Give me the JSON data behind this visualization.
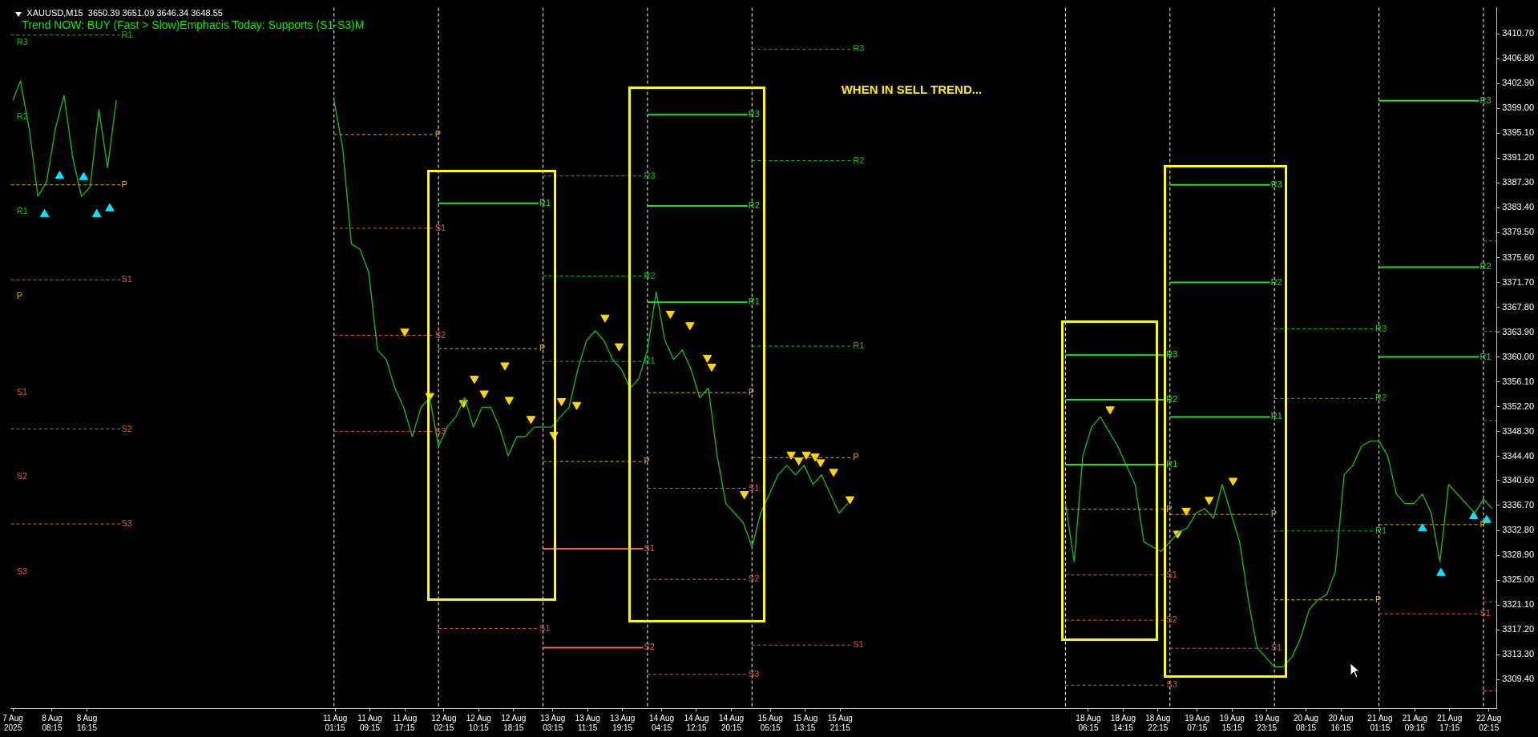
{
  "chart_data": {
    "type": "line",
    "title": "XAUUSD,M15  3650.39 3651.09 3646.34 3648.55",
    "subtitle": "Trend NOW: BUY (Fast > Slow)Emphacis Today: Supports (S1-S3)M",
    "annotations": [
      "WHEN IN SELL TREND...",
      "R3",
      "R2",
      "R1",
      "P",
      "S1",
      "S2",
      "S3"
    ],
    "xlim": [
      "2025-08-07T22:45",
      "2025-08-22T04:00"
    ],
    "xticks": [
      {
        "value": "2025-08-07T23:15",
        "label": "7 Aug 2025"
      },
      {
        "value": "2025-08-08T08:15",
        "label": "8 Aug 08:15"
      },
      {
        "value": "2025-08-08T16:15",
        "label": "8 Aug 16:15"
      },
      {
        "value": "2025-08-11T01:15",
        "label": "11 Aug 01:15"
      },
      {
        "value": "2025-08-11T09:15",
        "label": "11 Aug 09:15"
      },
      {
        "value": "2025-08-11T17:15",
        "label": "11 Aug 17:15"
      },
      {
        "value": "2025-08-12T02:15",
        "label": "12 Aug 02:15"
      },
      {
        "value": "2025-08-12T10:15",
        "label": "12 Aug 10:15"
      },
      {
        "value": "2025-08-12T18:15",
        "label": "12 Aug 18:15"
      },
      {
        "value": "2025-08-13T03:15",
        "label": "13 Aug 03:15"
      },
      {
        "value": "2025-08-13T11:15",
        "label": "13 Aug 11:15"
      },
      {
        "value": "2025-08-13T19:15",
        "label": "13 Aug 19:15"
      },
      {
        "value": "2025-08-14T04:15",
        "label": "14 Aug 04:15"
      },
      {
        "value": "2025-08-14T12:15",
        "label": "14 Aug 12:15"
      },
      {
        "value": "2025-08-14T20:15",
        "label": "14 Aug 20:15"
      },
      {
        "value": "2025-08-15T05:15",
        "label": "15 Aug 05:15"
      },
      {
        "value": "2025-08-15T13:15",
        "label": "15 Aug 13:15"
      },
      {
        "value": "2025-08-15T21:15",
        "label": "15 Aug 21:15"
      },
      {
        "value": "2025-08-18T06:15",
        "label": "18 Aug 06:15"
      },
      {
        "value": "2025-08-18T14:15",
        "label": "18 Aug 14:15"
      },
      {
        "value": "2025-08-18T22:15",
        "label": "18 Aug 22:15"
      },
      {
        "value": "2025-08-19T07:15",
        "label": "19 Aug 07:15"
      },
      {
        "value": "2025-08-19T15:15",
        "label": "19 Aug 15:15"
      },
      {
        "value": "2025-08-19T23:15",
        "label": "19 Aug 23:15"
      },
      {
        "value": "2025-08-20T08:15",
        "label": "20 Aug 08:15"
      },
      {
        "value": "2025-08-20T16:15",
        "label": "20 Aug 16:15"
      },
      {
        "value": "2025-08-21T01:15",
        "label": "21 Aug 01:15"
      },
      {
        "value": "2025-08-21T09:15",
        "label": "21 Aug 09:15"
      },
      {
        "value": "2025-08-21T17:15",
        "label": "21 Aug 17:15"
      },
      {
        "value": "2025-08-22T02:15",
        "label": "22 Aug 02:15"
      }
    ],
    "ylim": [
      3304.9,
      3414.8
    ],
    "yticks": [
      {
        "value": 3410.7,
        "label": "3410.70"
      },
      {
        "value": 3406.8,
        "label": "3406.80"
      },
      {
        "value": 3402.9,
        "label": "3402.90"
      },
      {
        "value": 3399,
        "label": "3399.00"
      },
      {
        "value": 3395.1,
        "label": "3395.10"
      },
      {
        "value": 3391.2,
        "label": "3391.20"
      },
      {
        "value": 3387.3,
        "label": "3387.30"
      },
      {
        "value": 3383.4,
        "label": "3383.40"
      },
      {
        "value": 3379.5,
        "label": "3379.50"
      },
      {
        "value": 3375.6,
        "label": "3375.60"
      },
      {
        "value": 3371.7,
        "label": "3371.70"
      },
      {
        "value": 3367.8,
        "label": "3367.80"
      },
      {
        "value": 3363.9,
        "label": "3363.90"
      },
      {
        "value": 3360,
        "label": "3360.00"
      },
      {
        "value": 3356.1,
        "label": "3356.10"
      },
      {
        "value": 3352.2,
        "label": "3352.20"
      },
      {
        "value": 3348.3,
        "label": "3348.30"
      },
      {
        "value": 3344.4,
        "label": "3344.40"
      },
      {
        "value": 3340.6,
        "label": "3340.60"
      },
      {
        "value": 3336.7,
        "label": "3336.70"
      },
      {
        "value": 3332.8,
        "label": "3332.80"
      },
      {
        "value": 3328.9,
        "label": "3328.90"
      },
      {
        "value": 3325,
        "label": "3325.00"
      },
      {
        "value": 3321.1,
        "label": "3321.10"
      },
      {
        "value": 3317.2,
        "label": "3317.20"
      },
      {
        "value": 3313.3,
        "label": "3313.30"
      },
      {
        "value": 3309.4,
        "label": "3309.40"
      }
    ],
    "grid": false,
    "legend": false,
    "marker": "none",
    "ref_lines": [
      {
        "axis": "x",
        "value": "2025-08-11T01:00",
        "color": "#ffffff",
        "line_style": "dashed"
      },
      {
        "axis": "x",
        "value": "2025-08-12T01:00",
        "color": "#ffffff",
        "line_style": "dashed"
      },
      {
        "axis": "x",
        "value": "2025-08-13T01:00",
        "color": "#ffffff",
        "line_style": "dashed"
      },
      {
        "axis": "x",
        "value": "2025-08-14T01:00",
        "color": "#ffffff",
        "line_style": "dashed"
      },
      {
        "axis": "x",
        "value": "2025-08-15T01:00",
        "color": "#ffffff",
        "line_style": "dashed"
      },
      {
        "axis": "x",
        "value": "2025-08-18T01:00",
        "color": "#ffffff",
        "line_style": "dashed"
      },
      {
        "axis": "x",
        "value": "2025-08-19T01:00",
        "color": "#ffffff",
        "line_style": "dashed"
      },
      {
        "axis": "x",
        "value": "2025-08-20T01:00",
        "color": "#ffffff",
        "line_style": "dashed"
      },
      {
        "axis": "x",
        "value": "2025-08-21T01:00",
        "color": "#ffffff",
        "line_style": "dashed"
      },
      {
        "axis": "x",
        "value": "2025-08-22T01:00",
        "color": "#ffffff",
        "line_style": "dashed"
      }
    ],
    "series": [
      {
        "name": "R1",
        "color": "#00c800",
        "line_style": "dashed",
        "x": [
          "2025-08-07T22:45",
          "2025-08-09T00:00"
        ],
        "values": [
          3410.5,
          3410.5
        ]
      },
      {
        "name": "P",
        "color": "#e0b400",
        "line_style": "dashed",
        "x": [
          "2025-08-07T22:45",
          "2025-08-09T00:00"
        ],
        "values": [
          3387.0,
          3387.0
        ]
      },
      {
        "name": "S1",
        "color": "#e0583c",
        "line_style": "dashed",
        "x": [
          "2025-08-07T22:45",
          "2025-08-09T00:00"
        ],
        "values": [
          3372.1,
          3372.1
        ]
      },
      {
        "name": "S2",
        "color": "#e0583c",
        "line_style": "dashed",
        "x": [
          "2025-08-07T22:45",
          "2025-08-09T00:00"
        ],
        "values": [
          3348.7,
          3348.7
        ]
      },
      {
        "name": "S3",
        "color": "#e0583c",
        "line_style": "dashed",
        "x": [
          "2025-08-07T22:45",
          "2025-08-09T00:00"
        ],
        "values": [
          3333.8,
          3333.8
        ]
      },
      {
        "name": "P",
        "color": "#e0b400",
        "line_style": "dashed",
        "x": [
          "2025-08-11T01:00",
          "2025-08-12T00:00"
        ],
        "values": [
          3394.9,
          3394.9
        ]
      },
      {
        "name": "S1",
        "color": "#e0583c",
        "line_style": "dashed",
        "x": [
          "2025-08-11T01:00",
          "2025-08-12T00:00"
        ],
        "values": [
          3380.2,
          3380.2
        ]
      },
      {
        "name": "S2",
        "color": "#e0583c",
        "line_style": "dashed",
        "x": [
          "2025-08-11T01:00",
          "2025-08-12T00:00"
        ],
        "values": [
          3363.4,
          3363.4
        ]
      },
      {
        "name": "S3",
        "color": "#e0583c",
        "line_style": "dashed",
        "x": [
          "2025-08-11T01:00",
          "2025-08-12T00:00"
        ],
        "values": [
          3348.3,
          3348.3
        ]
      },
      {
        "name": "R1",
        "color": "#22e022",
        "line_style": "solid",
        "x": [
          "2025-08-12T01:00",
          "2025-08-13T00:00"
        ],
        "values": [
          3384.1,
          3384.1
        ]
      },
      {
        "name": "P",
        "color": "#e0b400",
        "line_style": "dashed",
        "x": [
          "2025-08-12T01:00",
          "2025-08-13T00:00"
        ],
        "values": [
          3361.3,
          3361.3
        ]
      },
      {
        "name": "S1",
        "color": "#e0583c",
        "line_style": "dashed",
        "x": [
          "2025-08-12T01:00",
          "2025-08-13T00:00"
        ],
        "values": [
          3317.4,
          3317.4
        ]
      },
      {
        "name": "R3",
        "color": "#00c800",
        "line_style": "dashed",
        "x": [
          "2025-08-13T01:00",
          "2025-08-14T00:00"
        ],
        "values": [
          3388.4,
          3388.4
        ]
      },
      {
        "name": "R2",
        "color": "#00c800",
        "line_style": "dashed",
        "x": [
          "2025-08-13T01:00",
          "2025-08-14T00:00"
        ],
        "values": [
          3372.7,
          3372.7
        ]
      },
      {
        "name": "R1",
        "color": "#00c800",
        "line_style": "dashed",
        "x": [
          "2025-08-13T01:00",
          "2025-08-14T00:00"
        ],
        "values": [
          3359.3,
          3359.3
        ]
      },
      {
        "name": "P",
        "color": "#e0b400",
        "line_style": "dashed",
        "x": [
          "2025-08-13T01:00",
          "2025-08-14T00:00"
        ],
        "values": [
          3343.6,
          3343.6
        ]
      },
      {
        "name": "S1",
        "color": "#f0644a",
        "line_style": "solid",
        "x": [
          "2025-08-13T01:00",
          "2025-08-14T00:00"
        ],
        "values": [
          3329.9,
          3329.9
        ]
      },
      {
        "name": "S2",
        "color": "#f0644a",
        "line_style": "solid",
        "x": [
          "2025-08-13T01:00",
          "2025-08-14T00:00"
        ],
        "values": [
          3314.4,
          3314.4
        ]
      },
      {
        "name": "R3",
        "color": "#22e022",
        "line_style": "solid",
        "x": [
          "2025-08-14T01:00",
          "2025-08-15T00:00"
        ],
        "values": [
          3398.0,
          3398.0
        ]
      },
      {
        "name": "R2",
        "color": "#22e022",
        "line_style": "solid",
        "x": [
          "2025-08-14T01:00",
          "2025-08-15T00:00"
        ],
        "values": [
          3383.7,
          3383.7
        ]
      },
      {
        "name": "R1",
        "color": "#22e022",
        "line_style": "solid",
        "x": [
          "2025-08-14T01:00",
          "2025-08-15T00:00"
        ],
        "values": [
          3368.6,
          3368.6
        ]
      },
      {
        "name": "P",
        "color": "#e0b400",
        "line_style": "dashed",
        "x": [
          "2025-08-14T01:00",
          "2025-08-15T00:00"
        ],
        "values": [
          3354.4,
          3354.4
        ]
      },
      {
        "name": "S1",
        "color": "#e0583c",
        "line_style": "dashed",
        "x": [
          "2025-08-14T01:00",
          "2025-08-15T00:00"
        ],
        "values": [
          3339.4,
          3339.4
        ]
      },
      {
        "name": "S2",
        "color": "#e0583c",
        "line_style": "dashed",
        "x": [
          "2025-08-14T01:00",
          "2025-08-15T00:00"
        ],
        "values": [
          3325.1,
          3325.1
        ]
      },
      {
        "name": "S3",
        "color": "#e0583c",
        "line_style": "dashed",
        "x": [
          "2025-08-14T01:00",
          "2025-08-15T00:00"
        ],
        "values": [
          3310.2,
          3310.2
        ]
      },
      {
        "name": "R3",
        "color": "#00c800",
        "line_style": "dashed",
        "x": [
          "2025-08-15T01:00",
          "2025-08-16T00:00"
        ],
        "values": [
          3408.3,
          3408.3
        ]
      },
      {
        "name": "R2",
        "color": "#00c800",
        "line_style": "dashed",
        "x": [
          "2025-08-15T01:00",
          "2025-08-16T00:00"
        ],
        "values": [
          3390.8,
          3390.8
        ]
      },
      {
        "name": "R1",
        "color": "#00c800",
        "line_style": "dashed",
        "x": [
          "2025-08-15T01:00",
          "2025-08-16T00:00"
        ],
        "values": [
          3361.7,
          3361.7
        ]
      },
      {
        "name": "P",
        "color": "#e0b400",
        "line_style": "dashed",
        "x": [
          "2025-08-15T01:00",
          "2025-08-16T00:00"
        ],
        "values": [
          3344.2,
          3344.2
        ]
      },
      {
        "name": "S1",
        "color": "#e0583c",
        "line_style": "dashed",
        "x": [
          "2025-08-15T01:00",
          "2025-08-16T00:00"
        ],
        "values": [
          3314.8,
          3314.8
        ]
      },
      {
        "name": "R3",
        "color": "#22e022",
        "line_style": "solid",
        "x": [
          "2025-08-18T01:00",
          "2025-08-19T00:00"
        ],
        "values": [
          3360.3,
          3360.3
        ]
      },
      {
        "name": "R2",
        "color": "#22e022",
        "line_style": "solid",
        "x": [
          "2025-08-18T01:00",
          "2025-08-19T00:00"
        ],
        "values": [
          3353.3,
          3353.3
        ]
      },
      {
        "name": "R1",
        "color": "#22e022",
        "line_style": "solid",
        "x": [
          "2025-08-18T01:00",
          "2025-08-19T00:00"
        ],
        "values": [
          3343.1,
          3343.1
        ]
      },
      {
        "name": "P",
        "color": "#e0b400",
        "line_style": "dashed",
        "x": [
          "2025-08-18T01:00",
          "2025-08-19T00:00"
        ],
        "values": [
          3336.1,
          3336.1
        ]
      },
      {
        "name": "S1",
        "color": "#e0583c",
        "line_style": "dashed",
        "x": [
          "2025-08-18T01:00",
          "2025-08-19T00:00"
        ],
        "values": [
          3325.8,
          3325.8
        ]
      },
      {
        "name": "S2",
        "color": "#e0583c",
        "line_style": "dashed",
        "x": [
          "2025-08-18T01:00",
          "2025-08-19T00:00"
        ],
        "values": [
          3318.7,
          3318.7
        ]
      },
      {
        "name": "S3",
        "color": "#e0583c",
        "line_style": "dashed",
        "x": [
          "2025-08-18T01:00",
          "2025-08-19T00:00"
        ],
        "values": [
          3308.5,
          3308.5
        ]
      },
      {
        "name": "R3",
        "color": "#22e022",
        "line_style": "solid",
        "x": [
          "2025-08-19T01:00",
          "2025-08-20T00:00"
        ],
        "values": [
          3387.0,
          3387.0
        ]
      },
      {
        "name": "R2",
        "color": "#22e022",
        "line_style": "solid",
        "x": [
          "2025-08-19T01:00",
          "2025-08-20T00:00"
        ],
        "values": [
          3371.7,
          3371.7
        ]
      },
      {
        "name": "R1",
        "color": "#22e022",
        "line_style": "solid",
        "x": [
          "2025-08-19T01:00",
          "2025-08-20T00:00"
        ],
        "values": [
          3350.6,
          3350.6
        ]
      },
      {
        "name": "P",
        "color": "#e0b400",
        "line_style": "dashed",
        "x": [
          "2025-08-19T01:00",
          "2025-08-20T00:00"
        ],
        "values": [
          3335.3,
          3335.3
        ]
      },
      {
        "name": "S1",
        "color": "#e0583c",
        "line_style": "dashed",
        "x": [
          "2025-08-19T01:00",
          "2025-08-20T00:00"
        ],
        "values": [
          3314.3,
          3314.3
        ]
      },
      {
        "name": "R3",
        "color": "#00c800",
        "line_style": "dashed",
        "x": [
          "2025-08-20T01:00",
          "2025-08-21T00:00"
        ],
        "values": [
          3364.4,
          3364.4
        ]
      },
      {
        "name": "R2",
        "color": "#00c800",
        "line_style": "dashed",
        "x": [
          "2025-08-20T01:00",
          "2025-08-21T00:00"
        ],
        "values": [
          3353.5,
          3353.5
        ]
      },
      {
        "name": "R1",
        "color": "#00c800",
        "line_style": "dashed",
        "x": [
          "2025-08-20T01:00",
          "2025-08-21T00:00"
        ],
        "values": [
          3332.7,
          3332.7
        ]
      },
      {
        "name": "P",
        "color": "#e0b400",
        "line_style": "dashed",
        "x": [
          "2025-08-20T01:00",
          "2025-08-21T00:00"
        ],
        "values": [
          3321.9,
          3321.9
        ]
      },
      {
        "name": "R3",
        "color": "#22e022",
        "line_style": "solid",
        "x": [
          "2025-08-21T01:00",
          "2025-08-22T00:00"
        ],
        "values": [
          3400.2,
          3400.2
        ]
      },
      {
        "name": "R2",
        "color": "#22e022",
        "line_style": "solid",
        "x": [
          "2025-08-21T01:00",
          "2025-08-22T00:00"
        ],
        "values": [
          3374.1,
          3374.1
        ]
      },
      {
        "name": "R1",
        "color": "#22e022",
        "line_style": "solid",
        "x": [
          "2025-08-21T01:00",
          "2025-08-22T00:00"
        ],
        "values": [
          3360.0,
          3360.0
        ]
      },
      {
        "name": "P",
        "color": "#e0b400",
        "line_style": "dashed",
        "x": [
          "2025-08-21T01:00",
          "2025-08-22T00:00"
        ],
        "values": [
          3333.7,
          3333.7
        ]
      },
      {
        "name": "S1",
        "color": "#e0583c",
        "line_style": "dashed",
        "x": [
          "2025-08-21T01:00",
          "2025-08-22T00:00"
        ],
        "values": [
          3319.7,
          3319.7
        ]
      },
      {
        "color": "#00c800",
        "line_style": "dashed",
        "x": [
          "2025-08-22T01:00",
          "2025-08-22T04:00"
        ],
        "values": [
          3378.2,
          3378.2
        ]
      },
      {
        "color": "#00c800",
        "line_style": "dashed",
        "x": [
          "2025-08-22T01:00",
          "2025-08-22T04:00"
        ],
        "values": [
          3364.0,
          3364.0
        ]
      },
      {
        "color": "#00c800",
        "line_style": "dashed",
        "x": [
          "2025-08-22T01:00",
          "2025-08-22T04:00"
        ],
        "values": [
          3350.0,
          3350.0
        ]
      },
      {
        "color": "#e0583c",
        "line_style": "dashed",
        "x": [
          "2025-08-22T01:00",
          "2025-08-22T04:00"
        ],
        "values": [
          3321.6,
          3321.6
        ]
      },
      {
        "color": "#e0583c",
        "line_style": "dashed",
        "x": [
          "2025-08-22T01:00",
          "2025-08-22T04:00"
        ],
        "values": [
          3307.6,
          3307.6
        ]
      },
      {
        "color": "#18b418",
        "line_style": "solid",
        "x": [
          "2025-08-07T23:15",
          "2025-08-08T01:00",
          "2025-08-08T03:00",
          "2025-08-08T05:00",
          "2025-08-08T07:00",
          "2025-08-08T09:00",
          "2025-08-08T11:00",
          "2025-08-08T13:00",
          "2025-08-08T15:00",
          "2025-08-08T17:00",
          "2025-08-08T19:00",
          "2025-08-08T21:00",
          "2025-08-08T23:00",
          "2025-08-09T12:00",
          "2025-08-11T01:00",
          "2025-08-11T03:00",
          "2025-08-11T05:00",
          "2025-08-11T07:00",
          "2025-08-11T09:00",
          "2025-08-11T11:00",
          "2025-08-11T13:00",
          "2025-08-11T15:00",
          "2025-08-11T17:00",
          "2025-08-11T19:00",
          "2025-08-11T21:00",
          "2025-08-11T23:00",
          "2025-08-12T01:00",
          "2025-08-12T03:00",
          "2025-08-12T05:00",
          "2025-08-12T07:00",
          "2025-08-12T09:00",
          "2025-08-12T11:00",
          "2025-08-12T13:00",
          "2025-08-12T15:00",
          "2025-08-12T17:00",
          "2025-08-12T19:00",
          "2025-08-12T21:00",
          "2025-08-12T23:00",
          "2025-08-13T01:00",
          "2025-08-13T03:00",
          "2025-08-13T05:00",
          "2025-08-13T07:00",
          "2025-08-13T09:00",
          "2025-08-13T11:00",
          "2025-08-13T13:00",
          "2025-08-13T15:00",
          "2025-08-13T17:00",
          "2025-08-13T19:00",
          "2025-08-13T21:00",
          "2025-08-13T23:00",
          "2025-08-14T01:00",
          "2025-08-14T03:00",
          "2025-08-14T05:00",
          "2025-08-14T07:00",
          "2025-08-14T09:00",
          "2025-08-14T11:00",
          "2025-08-14T13:00",
          "2025-08-14T15:00",
          "2025-08-14T17:00",
          "2025-08-14T19:00",
          "2025-08-14T21:00",
          "2025-08-14T23:00",
          "2025-08-15T01:00",
          "2025-08-15T03:00",
          "2025-08-15T05:00",
          "2025-08-15T07:00",
          "2025-08-15T09:00",
          "2025-08-15T11:00",
          "2025-08-15T13:00",
          "2025-08-15T15:00",
          "2025-08-15T17:00",
          "2025-08-15T19:00",
          "2025-08-15T21:00",
          "2025-08-15T23:00",
          "2025-08-16T12:00",
          "2025-08-18T01:00",
          "2025-08-18T03:00",
          "2025-08-18T05:00",
          "2025-08-18T07:00",
          "2025-08-18T09:00",
          "2025-08-18T11:00",
          "2025-08-18T13:00",
          "2025-08-18T15:00",
          "2025-08-18T17:00",
          "2025-08-18T19:00",
          "2025-08-18T21:00",
          "2025-08-18T23:00",
          "2025-08-19T01:00",
          "2025-08-19T03:00",
          "2025-08-19T05:00",
          "2025-08-19T07:00",
          "2025-08-19T09:00",
          "2025-08-19T11:00",
          "2025-08-19T13:00",
          "2025-08-19T15:00",
          "2025-08-19T17:00",
          "2025-08-19T19:00",
          "2025-08-19T21:00",
          "2025-08-19T23:00",
          "2025-08-20T01:00",
          "2025-08-20T03:00",
          "2025-08-20T05:00",
          "2025-08-20T07:00",
          "2025-08-20T09:00",
          "2025-08-20T11:00",
          "2025-08-20T13:00",
          "2025-08-20T15:00",
          "2025-08-20T17:00",
          "2025-08-20T19:00",
          "2025-08-20T21:00",
          "2025-08-20T23:00",
          "2025-08-21T01:00",
          "2025-08-21T03:00",
          "2025-08-21T05:00",
          "2025-08-21T07:00",
          "2025-08-21T09:00",
          "2025-08-21T11:00",
          "2025-08-21T13:00",
          "2025-08-21T15:00",
          "2025-08-21T17:00",
          "2025-08-21T19:00",
          "2025-08-21T21:00",
          "2025-08-21T23:00",
          "2025-08-22T01:00",
          "2025-08-22T03:00"
        ],
        "values": [
          3400.3,
          3403.3,
          3395.8,
          3385.2,
          3387.5,
          3395.8,
          3401.0,
          3391.3,
          3385.2,
          3386.7,
          3398.8,
          3389.7,
          3400.3,
          null,
          3400.3,
          3392.8,
          3377.7,
          3376.9,
          3373.2,
          3361.1,
          3359.6,
          3355.1,
          3352.1,
          3347.5,
          3352.1,
          3353.6,
          3346.0,
          3349.0,
          3350.6,
          3353.6,
          3349.0,
          3352.1,
          3352.1,
          3349.0,
          3344.5,
          3347.5,
          3347.5,
          3349.0,
          3349.0,
          3349.0,
          3350.6,
          3352.1,
          3358.1,
          3362.6,
          3364.1,
          3362.6,
          3359.6,
          3358.1,
          3355.1,
          3356.6,
          3361.1,
          3370.2,
          3362.6,
          3359.6,
          3361.1,
          3358.1,
          3353.6,
          3355.1,
          3344.5,
          3337.0,
          3335.5,
          3334.0,
          3330.2,
          3335.5,
          3338.5,
          3341.5,
          3343.0,
          3341.5,
          3343.0,
          3340.0,
          3341.5,
          3338.5,
          3335.5,
          3337.0,
          null,
          3337.0,
          3327.9,
          3344.5,
          3349.0,
          3350.6,
          3348.3,
          3346.0,
          3343.0,
          3340.0,
          3331.0,
          3330.2,
          3329.5,
          3331.0,
          3332.5,
          3333.2,
          3335.5,
          3336.2,
          3334.7,
          3340.0,
          3335.5,
          3331.0,
          3321.9,
          3314.4,
          3312.9,
          3311.4,
          3311.4,
          3312.9,
          3315.9,
          3320.4,
          3321.9,
          3322.7,
          3326.4,
          3341.5,
          3343.0,
          3346.0,
          3346.8,
          3346.8,
          3344.5,
          3338.5,
          3337.0,
          3337.0,
          3338.5,
          3335.5,
          3327.9,
          3340.0,
          3338.5,
          3337.0,
          3335.5,
          3337.7,
          3336.2
        ]
      },
      {
        "type": "scatter",
        "color": "#00e8ff",
        "marker": "triangle",
        "x": [
          "2025-08-08T06:30",
          "2025-08-08T10:00",
          "2025-08-08T15:30",
          "2025-08-08T18:30",
          "2025-08-08T21:30",
          "2025-08-21T11:00",
          "2025-08-21T15:15",
          "2025-08-21T22:45",
          "2025-08-22T01:45"
        ],
        "values": [
          3382.4,
          3388.4,
          3388.2,
          3382.4,
          3383.3,
          3333.1,
          3326.1,
          3335.0,
          3334.4
        ]
      },
      {
        "type": "scatter",
        "color": "#ffd700",
        "marker": "triangle-down",
        "x": [
          "2025-08-11T17:15",
          "2025-08-11T23:00",
          "2025-08-12T06:45",
          "2025-08-12T09:15",
          "2025-08-12T11:30",
          "2025-08-12T16:15",
          "2025-08-12T17:15",
          "2025-08-12T22:15",
          "2025-08-13T03:30",
          "2025-08-13T05:15",
          "2025-08-13T08:45",
          "2025-08-13T15:15",
          "2025-08-13T18:30",
          "2025-08-14T06:15",
          "2025-08-14T10:45",
          "2025-08-14T14:45",
          "2025-08-14T15:45",
          "2025-08-14T23:15",
          "2025-08-15T10:00",
          "2025-08-15T11:45",
          "2025-08-15T13:30",
          "2025-08-15T15:30",
          "2025-08-15T16:45",
          "2025-08-15T19:45",
          "2025-08-15T23:30",
          "2025-08-18T11:15",
          "2025-08-19T02:45",
          "2025-08-19T04:45",
          "2025-08-19T10:00",
          "2025-08-19T15:30"
        ],
        "values": [
          3364.0,
          3353.9,
          3352.8,
          3356.6,
          3354.3,
          3358.7,
          3353.3,
          3350.3,
          3347.8,
          3353.1,
          3352.5,
          3366.2,
          3361.7,
          3366.8,
          3365.0,
          3359.9,
          3358.5,
          3338.5,
          3344.7,
          3343.8,
          3344.7,
          3344.4,
          3343.5,
          3342.0,
          3337.7,
          3351.8,
          3332.3,
          3335.9,
          3337.6,
          3340.6
        ]
      }
    ]
  }
}
